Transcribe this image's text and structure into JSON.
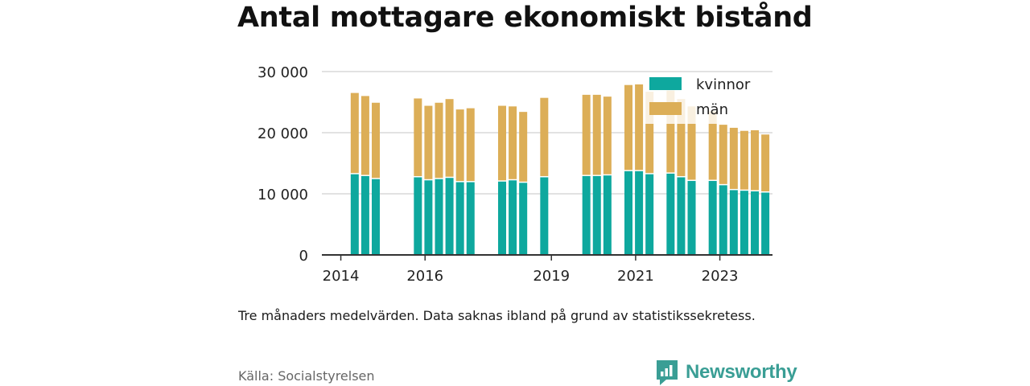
{
  "title": "Antal mottagare ekonomiskt bistånd",
  "note": "Tre månaders medelvärden. Data saknas ibland på grund av statistikssekretess.",
  "source": "Källa: Socialstyrelsen",
  "logo_text": "Newsworthy",
  "colors": {
    "kvinnor": "#0ea89e",
    "man": "#dcae57",
    "grid": "#d9d9d9",
    "axis": "#333333",
    "logo": "#3a9e95"
  },
  "chart_data": {
    "type": "bar",
    "stacked": true,
    "ylim": [
      0,
      30000
    ],
    "yticks": [
      {
        "value": 0,
        "label": "0"
      },
      {
        "value": 10000,
        "label": "10 000"
      },
      {
        "value": 20000,
        "label": "20 000"
      },
      {
        "value": 30000,
        "label": "30 000"
      }
    ],
    "xticks": [
      {
        "value": 2014.0,
        "label": "2014"
      },
      {
        "value": 2016.0,
        "label": "2016"
      },
      {
        "value": 2019.0,
        "label": "2019"
      },
      {
        "value": 2021.0,
        "label": "2021"
      },
      {
        "value": 2023.0,
        "label": "2023"
      }
    ],
    "xlim": [
      2013.55,
      2024.25
    ],
    "legend": {
      "position": "top-right"
    },
    "series": [
      {
        "name": "kvinnor",
        "color": "#0ea89e"
      },
      {
        "name": "män",
        "color": "#dcae57"
      }
    ],
    "bars": [
      {
        "x": 2014.33,
        "kvinnor": 13200,
        "man": 13300
      },
      {
        "x": 2014.58,
        "kvinnor": 12900,
        "man": 13100
      },
      {
        "x": 2014.83,
        "kvinnor": 12400,
        "man": 12500
      },
      {
        "x": 2015.83,
        "kvinnor": 12700,
        "man": 12900
      },
      {
        "x": 2016.08,
        "kvinnor": 12200,
        "man": 12200
      },
      {
        "x": 2016.33,
        "kvinnor": 12400,
        "man": 12500
      },
      {
        "x": 2016.58,
        "kvinnor": 12600,
        "man": 12900
      },
      {
        "x": 2016.83,
        "kvinnor": 11900,
        "man": 11900
      },
      {
        "x": 2017.08,
        "kvinnor": 11900,
        "man": 12100
      },
      {
        "x": 2017.83,
        "kvinnor": 12000,
        "man": 12400
      },
      {
        "x": 2018.08,
        "kvinnor": 12200,
        "man": 12100
      },
      {
        "x": 2018.33,
        "kvinnor": 11800,
        "man": 11600
      },
      {
        "x": 2018.83,
        "kvinnor": 12700,
        "man": 13000
      },
      {
        "x": 2019.83,
        "kvinnor": 12900,
        "man": 13300
      },
      {
        "x": 2020.08,
        "kvinnor": 12900,
        "man": 13300
      },
      {
        "x": 2020.33,
        "kvinnor": 13000,
        "man": 12900
      },
      {
        "x": 2020.83,
        "kvinnor": 13700,
        "man": 14100
      },
      {
        "x": 2021.08,
        "kvinnor": 13700,
        "man": 14200
      },
      {
        "x": 2021.33,
        "kvinnor": 13200,
        "man": 13500
      },
      {
        "x": 2021.83,
        "kvinnor": 13300,
        "man": 13600
      },
      {
        "x": 2022.08,
        "kvinnor": 12700,
        "man": 12800
      },
      {
        "x": 2022.33,
        "kvinnor": 12100,
        "man": 12200
      },
      {
        "x": 2022.83,
        "kvinnor": 12100,
        "man": 11400
      },
      {
        "x": 2023.08,
        "kvinnor": 11400,
        "man": 9900
      },
      {
        "x": 2023.33,
        "kvinnor": 10600,
        "man": 10200
      },
      {
        "x": 2023.58,
        "kvinnor": 10500,
        "man": 9800
      },
      {
        "x": 2023.83,
        "kvinnor": 10400,
        "man": 10000
      },
      {
        "x": 2024.08,
        "kvinnor": 10200,
        "man": 9500
      }
    ],
    "extra_bars": [
      {
        "x": 2018.83,
        "kvinnor": 12100,
        "man": 12000
      }
    ]
  }
}
